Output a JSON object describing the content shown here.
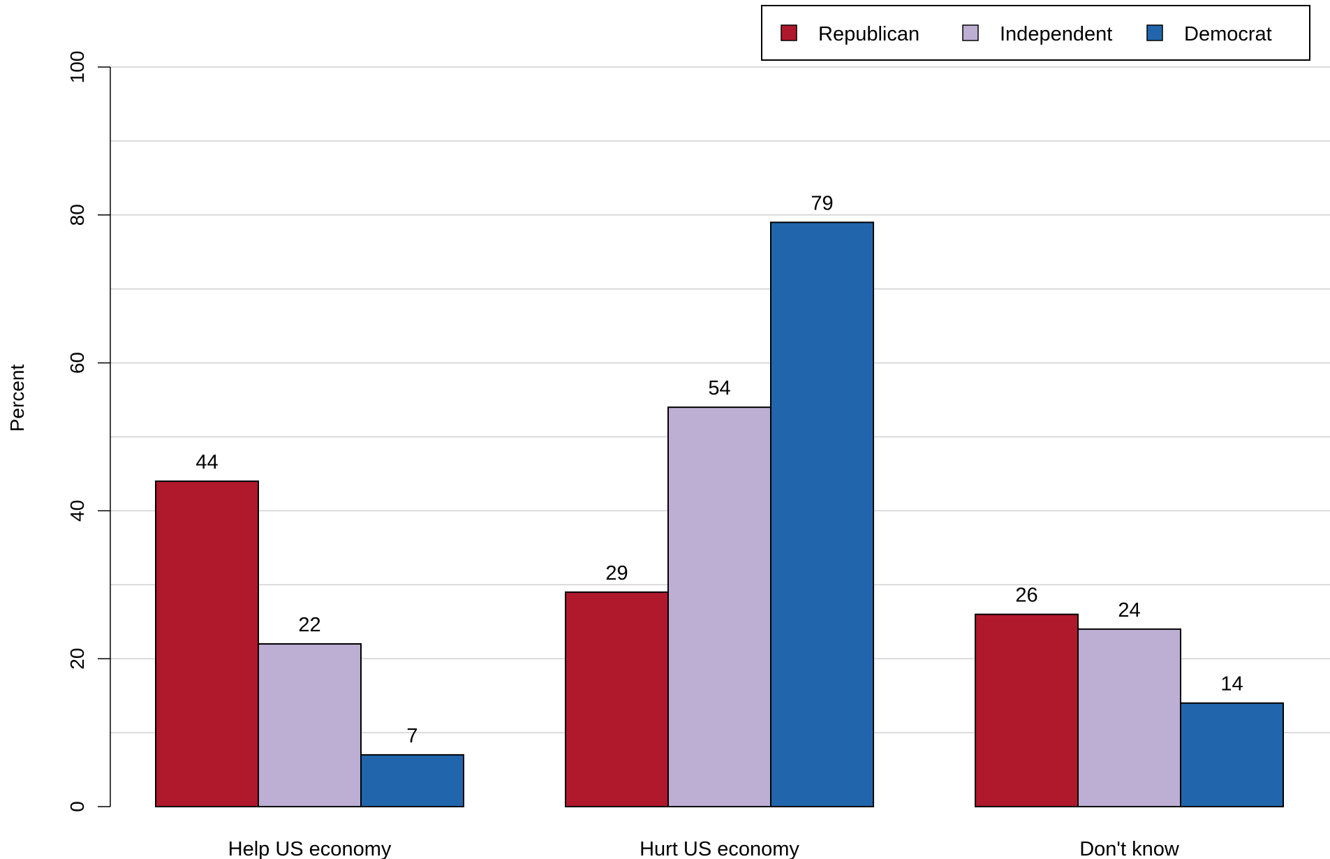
{
  "chart_data": {
    "type": "bar",
    "title": "",
    "xlabel": "",
    "ylabel": "Percent",
    "ylim": [
      0,
      100
    ],
    "yticks": [
      0,
      20,
      40,
      60,
      80,
      100
    ],
    "grid": true,
    "legend_position": "top-right",
    "categories": [
      "Help US economy",
      "Hurt US economy",
      "Don't know"
    ],
    "series": [
      {
        "name": "Republican",
        "color": "#B0182B",
        "values": [
          44,
          29,
          26
        ]
      },
      {
        "name": "Independent",
        "color": "#BDAED3",
        "values": [
          22,
          54,
          24
        ]
      },
      {
        "name": "Democrat",
        "color": "#2166AC",
        "values": [
          7,
          79,
          14
        ]
      }
    ]
  }
}
